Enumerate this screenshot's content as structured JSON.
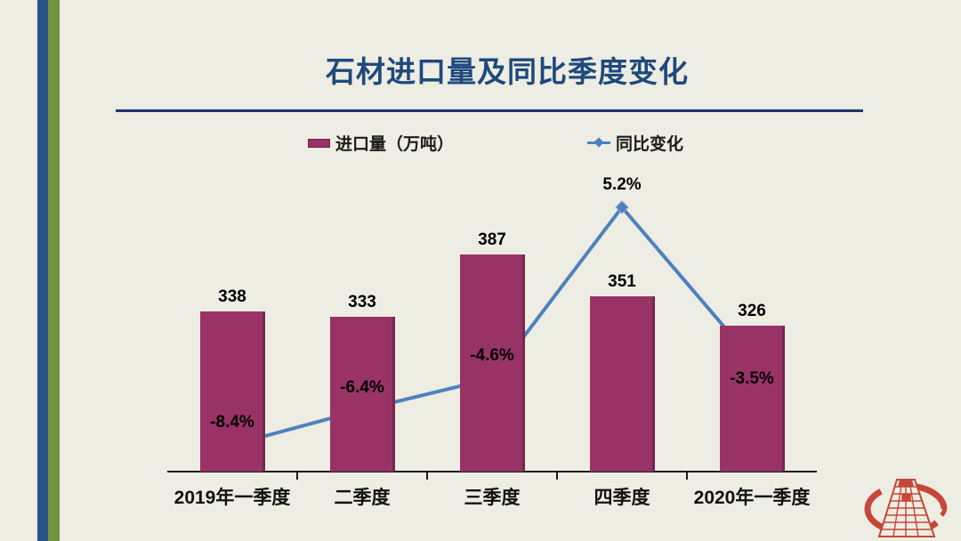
{
  "title": "石材进口量及同比季度变化",
  "legend": {
    "bar_label": "进口量（万吨）",
    "line_label": "同比变化"
  },
  "colors": {
    "background": "#EEEDE3",
    "title": "#1F497D",
    "divider": "#1F3864",
    "bar": "#993366",
    "bar_edge": "#74284E",
    "line": "#4F81BD",
    "stripe_blue": "#2A5489",
    "stripe_green": "#6F943D",
    "logo_red": "#C5473A",
    "label_text": "#000000"
  },
  "icons": {
    "bar_swatch": "magenta-rectangle",
    "line_swatch": "blue-line-with-diamond-marker",
    "logo": "red-ellipse-with-perspective-grid-tower"
  },
  "chart_data": {
    "type": "bar",
    "subtype": "bar-line-combo",
    "title": "石材进口量及同比季度变化",
    "categories": [
      "2019年一季度",
      "二季度",
      "三季度",
      "四季度",
      "2020年一季度"
    ],
    "series": [
      {
        "name": "进口量（万吨）",
        "type": "bar",
        "values": [
          338,
          333,
          387,
          351,
          326
        ],
        "labels": [
          "338",
          "333",
          "387",
          "351",
          "326"
        ],
        "color": "#993366"
      },
      {
        "name": "同比变化",
        "type": "line",
        "marker": "diamond",
        "values": [
          -8.4,
          -6.4,
          -4.6,
          5.2,
          -3.5
        ],
        "labels": [
          "-8.4%",
          "-6.4%",
          "-4.6%",
          "5.2%",
          "-3.5%"
        ],
        "label_below": [
          false,
          false,
          false,
          false,
          true
        ],
        "color": "#4F81BD"
      }
    ],
    "bar_axis": {
      "min": 200,
      "max": 450,
      "visible": false
    },
    "line_axis": {
      "unit": "%",
      "visible": false
    },
    "grid": false,
    "legend_position": "top",
    "x_axis": {
      "line": true,
      "tick_marks": "between-categories"
    }
  }
}
